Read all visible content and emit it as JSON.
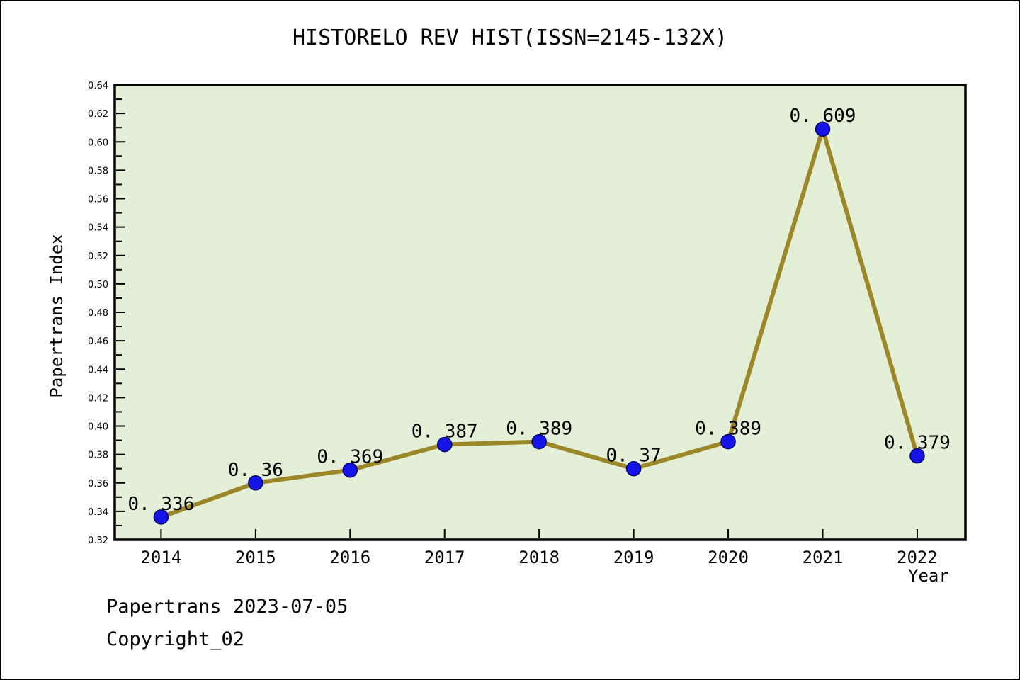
{
  "title": "HISTORELO REV HIST(ISSN=2145-132X)",
  "footer": {
    "line1": "Papertrans 2023-07-05",
    "line2": "Copyright_02"
  },
  "chart_data": {
    "type": "line",
    "title": "HISTORELO REV HIST(ISSN=2145-132X)",
    "xlabel": "Year",
    "ylabel": "Papertrans Index",
    "x": [
      2014,
      2015,
      2016,
      2017,
      2018,
      2019,
      2020,
      2021,
      2022
    ],
    "x_tick_labels": [
      "2014",
      "2015",
      "2016",
      "2017",
      "2018",
      "2019",
      "2020",
      "2021",
      "2022"
    ],
    "series": [
      {
        "name": "Papertrans Index",
        "values": [
          0.336,
          0.36,
          0.369,
          0.387,
          0.389,
          0.37,
          0.389,
          0.609,
          0.379
        ]
      }
    ],
    "point_labels": [
      "0.336",
      "0.36",
      "0.369",
      "0.387",
      "0.389",
      "0.37",
      "0.389",
      "0.609",
      "0.379"
    ],
    "ylim": [
      0.32,
      0.64
    ],
    "xlim": [
      2013.51,
      2022.51
    ],
    "y_tick_labels": [
      "0.32",
      "0.34",
      "0.36",
      "0.38",
      "0.40",
      "0.42",
      "0.44",
      "0.46",
      "0.48",
      "0.50",
      "0.52",
      "0.54",
      "0.56",
      "0.58",
      "0.60",
      "0.62",
      "0.64"
    ],
    "y_minor_step": 0.01,
    "grid": false,
    "legend": "none",
    "colors": {
      "plot_bg": "#E4EFD8",
      "line": "#9B8728",
      "marker": "#1414E6",
      "marker_edge": "#000070",
      "axis": "#000000",
      "text": "#000000"
    }
  }
}
